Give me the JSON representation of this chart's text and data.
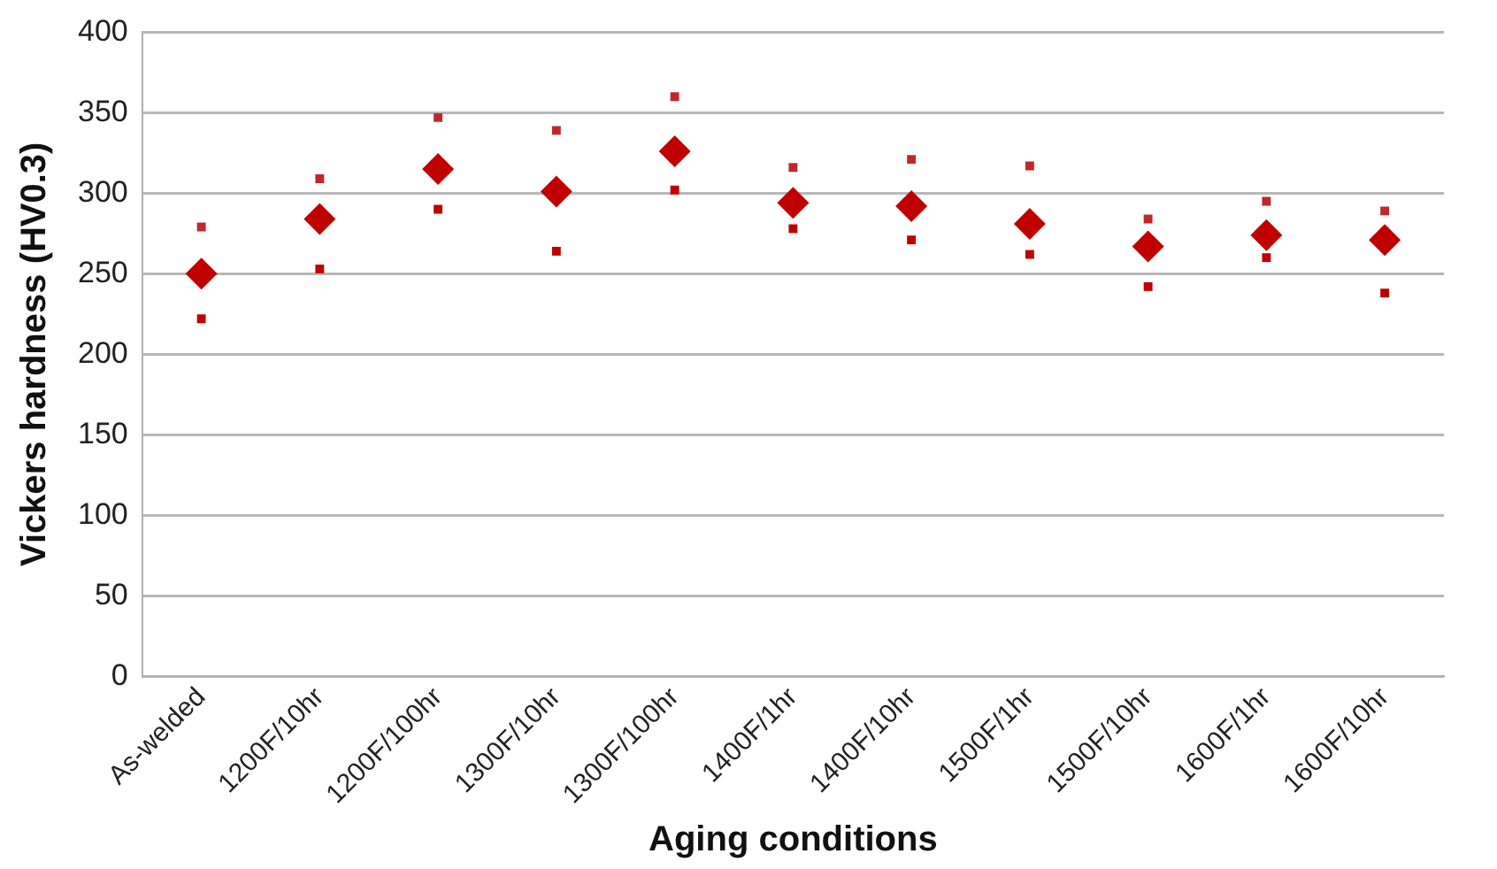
{
  "chart_data": {
    "type": "scatter",
    "xlabel": "Aging conditions",
    "ylabel": "Vickers hardness (HV0.3)",
    "categories": [
      "As-welded",
      "1200F/10hr",
      "1200F/100hr",
      "1300F/10hr",
      "1300F/100hr",
      "1400F/1hr",
      "1400F/10hr",
      "1500F/1hr",
      "1500F/10hr",
      "1600F/1hr",
      "1600F/10hr"
    ],
    "series": [
      {
        "color": "#c0282d",
        "marker": "square",
        "values": [
          279,
          309,
          347,
          339,
          360,
          316,
          321,
          317,
          284,
          295,
          289
        ]
      },
      {
        "color": "#c00000",
        "marker": "diamond",
        "values": [
          250,
          284,
          315,
          301,
          326,
          294,
          292,
          281,
          267,
          274,
          271
        ]
      },
      {
        "color": "#c00000",
        "marker": "square",
        "values": [
          222,
          253,
          290,
          264,
          302,
          278,
          271,
          262,
          242,
          260,
          238
        ]
      }
    ],
    "ylim": [
      0,
      400
    ],
    "yticks": [
      0,
      50,
      100,
      150,
      200,
      250,
      300,
      350,
      400
    ],
    "grid": "y",
    "legend": false
  }
}
